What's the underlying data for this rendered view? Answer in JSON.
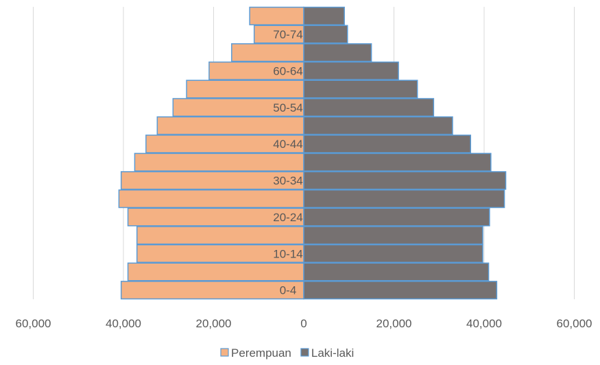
{
  "chart_data": {
    "type": "bar",
    "orientation": "horizontal",
    "layout": "population-pyramid",
    "categories": [
      "0-4",
      "5-9",
      "10-14",
      "15-19",
      "20-24",
      "25-29",
      "30-34",
      "35-39",
      "40-44",
      "45-49",
      "50-54",
      "55-59",
      "60-64",
      "65-69",
      "70-74",
      "75+"
    ],
    "visible_category_labels": [
      "0-4",
      "10-14",
      "20-24",
      "30-34",
      "40-44",
      "50-54",
      "60-64",
      "70-74"
    ],
    "series": [
      {
        "name": "Perempuan",
        "side": "left",
        "color": "#F4B183",
        "values": [
          40500,
          39000,
          37000,
          37000,
          39000,
          41000,
          40500,
          37500,
          35000,
          32500,
          29000,
          26000,
          21000,
          16000,
          11000,
          12000
        ]
      },
      {
        "name": "Laki-laki",
        "side": "right",
        "color": "#767171",
        "values": [
          42800,
          41000,
          39700,
          39700,
          41200,
          44500,
          44800,
          41500,
          37000,
          33000,
          28800,
          25200,
          21000,
          15000,
          9700,
          9000
        ]
      }
    ],
    "xlim": [
      -60000,
      60000
    ],
    "x_ticks": [
      -60000,
      -40000,
      -20000,
      0,
      20000,
      40000,
      60000
    ],
    "x_tick_labels": [
      "60,000",
      "40,000",
      "20,000",
      "0",
      "20,000",
      "40,000",
      "60,000"
    ],
    "grid": "vertical",
    "legend": "bottom",
    "bar_border_color": "#5B9BD5",
    "title": "",
    "xlabel": "",
    "ylabel": ""
  }
}
